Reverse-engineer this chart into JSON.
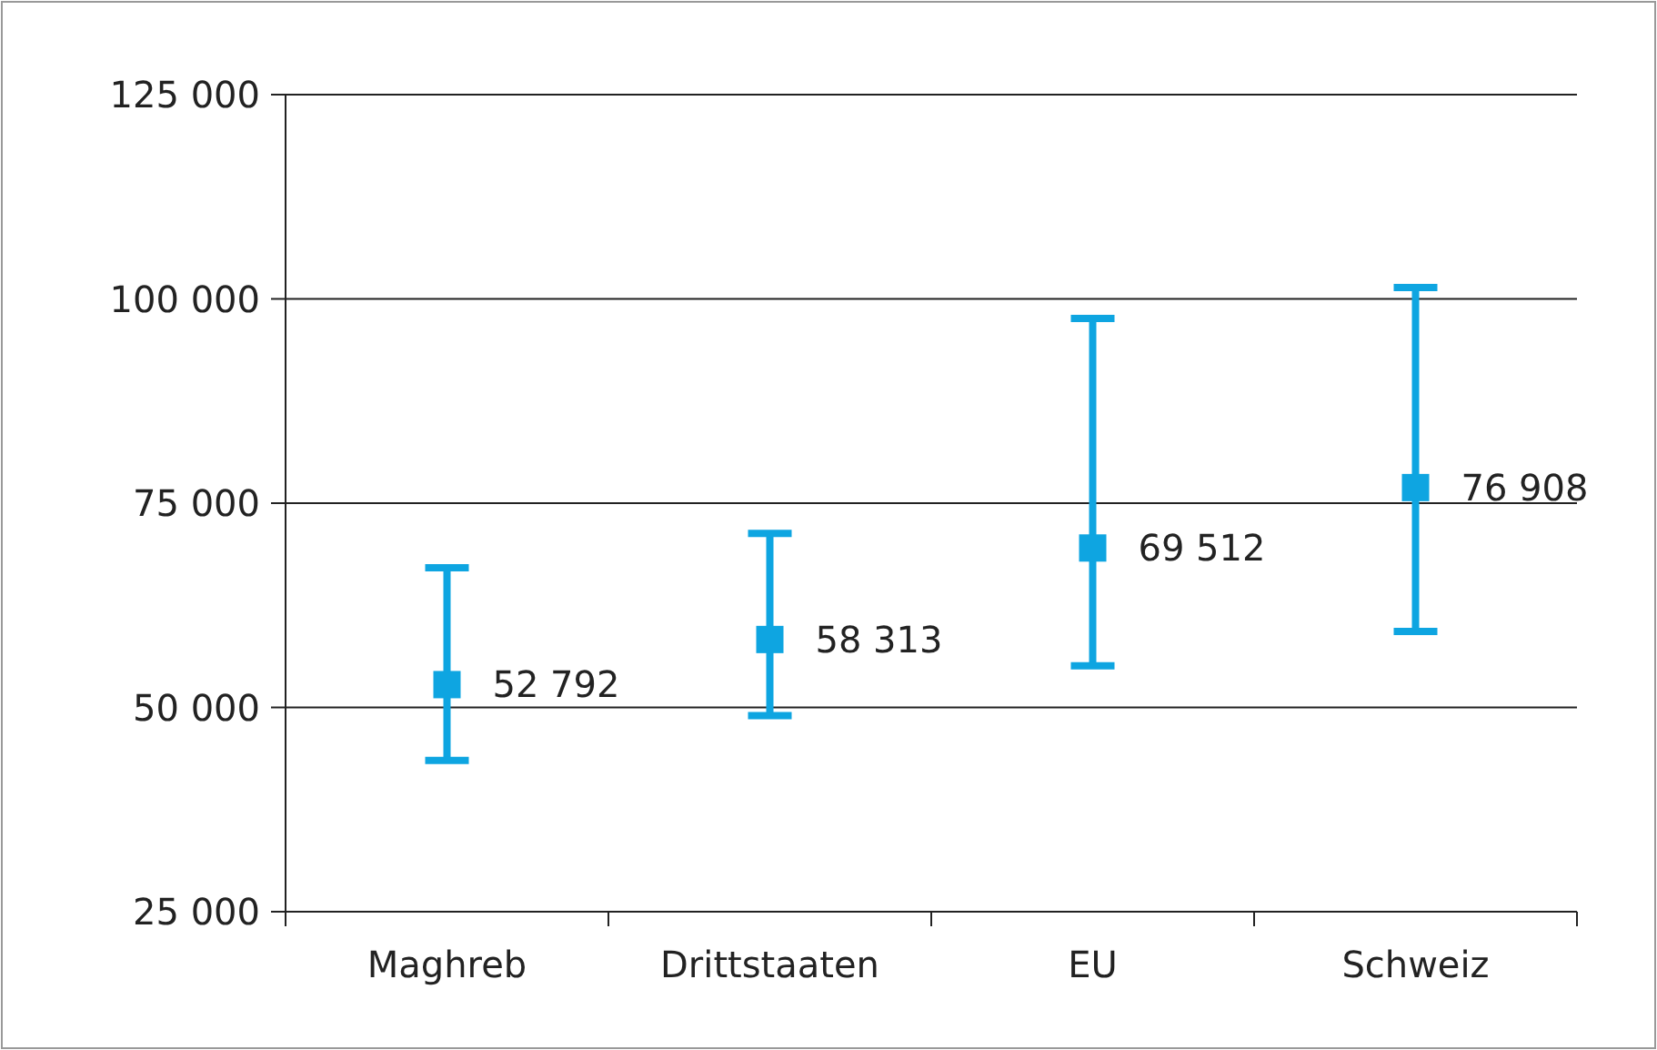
{
  "chart_data": {
    "type": "scatter",
    "categories": [
      "Maghreb",
      "Drittstaaten",
      "EU",
      "Schweiz"
    ],
    "series": [
      {
        "color": "#0ea5e1",
        "values": [
          52792,
          58313,
          69512,
          76908
        ],
        "errors": [
          [
            43500,
            67100
          ],
          [
            49000,
            71300
          ],
          [
            55100,
            97600
          ],
          [
            59300,
            101400
          ]
        ],
        "value_labels": [
          "52 792",
          "58 313",
          "69 512",
          "76 908"
        ]
      }
    ],
    "ylim": [
      25000,
      125000
    ],
    "yticks": [
      {
        "value": 25000,
        "label": "25 000"
      },
      {
        "value": 50000,
        "label": "50 000"
      },
      {
        "value": 75000,
        "label": "75 000"
      },
      {
        "value": 100000,
        "label": "100 000"
      },
      {
        "value": 125000,
        "label": "125 000"
      }
    ],
    "grid": "y",
    "marker": "square"
  }
}
